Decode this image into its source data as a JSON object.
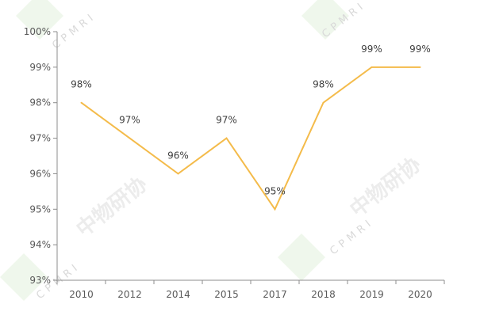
{
  "chart_data": {
    "type": "line",
    "title": "",
    "xlabel": "",
    "ylabel": "",
    "categories": [
      "2010",
      "2012",
      "2014",
      "2015",
      "2017",
      "2018",
      "2019",
      "2020"
    ],
    "series": [
      {
        "values": [
          98.0,
          97.0,
          96.0,
          97.0,
          95.0,
          98.0,
          99.0,
          99.0
        ],
        "data_labels": [
          "98%",
          "97%",
          "96%",
          "97%",
          "95%",
          "98%",
          "99%",
          "99%"
        ],
        "color": "#f4bb4a"
      }
    ],
    "ylim": [
      93,
      100
    ],
    "yticks": [
      {
        "value": 100,
        "label": "100%"
      },
      {
        "value": 99,
        "label": "99%"
      },
      {
        "value": 98,
        "label": "98%"
      },
      {
        "value": 97,
        "label": "97%"
      },
      {
        "value": 96,
        "label": "96%"
      },
      {
        "value": 95,
        "label": "95%"
      },
      {
        "value": 94,
        "label": "94%"
      },
      {
        "value": 93,
        "label": "93%"
      }
    ],
    "grid": false,
    "legend": "none"
  },
  "watermark": {
    "text_cn": "中物研协",
    "text_latin": "CPMRI"
  }
}
